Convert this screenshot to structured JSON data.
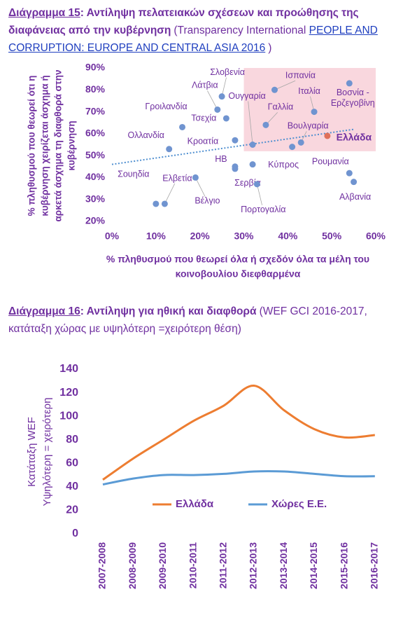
{
  "chart_data": [
    {
      "type": "scatter",
      "caption": {
        "label": "Διάγραμμα 15",
        "title": ": Αντίληψη πελατειακών σχέσεων και προώθησης της διαφάνειας από την κυβέρνηση",
        "source": "(Transparency International",
        "source_link": "PEOPLE AND CORRUPTION: EUROPE AND CENTRAL ASIA 2016",
        "source_end": ")"
      },
      "x_label": [
        "% πληθυσμού που θεωρεί όλα ή σχεδόν όλα τα μέλη του",
        "κοινοβουλίου διεφθαρμένα"
      ],
      "y_label": [
        "% πληθυσμού που θεωρεί ότι η",
        "κυβέρνηση χειρίζεται άσχημα ή",
        "αρκετά άσχημα τη διαφθορά στην",
        "κυβέρνηση"
      ],
      "labels": [
        "Σλοβενία",
        "Λάτβια",
        "Τσεχία",
        "Γροιλανδία",
        "Ολλανδία",
        "Κροατία",
        "ΗΒ",
        "Σουηδία",
        "Ελβετία",
        "Βέλγιο",
        "Σερβία",
        "Πορτογαλία",
        "Κύπρος",
        "Ουγγαρία",
        "Ισπανία",
        "Γαλλία",
        "Ιταλία",
        "Βουλγαρία",
        null,
        "Ελλάδα",
        "Βοσνία -\nΕρζεγοβίνη",
        "Ρουμανία",
        "Αλβανία"
      ],
      "x": [
        25,
        24,
        26,
        16,
        13,
        28,
        28,
        10,
        12,
        19,
        28,
        33,
        32,
        32,
        37,
        35,
        46,
        43,
        41,
        49,
        54,
        54,
        55
      ],
      "values": [
        77,
        71,
        67,
        63,
        53,
        57,
        45,
        28,
        28,
        40,
        44,
        37,
        46,
        55,
        80,
        64,
        70,
        56,
        54,
        59,
        83,
        42,
        38
      ],
      "point_colors": [
        "#7094d0",
        "#7094d0",
        "#7094d0",
        "#7094d0",
        "#7094d0",
        "#7094d0",
        "#7094d0",
        "#7094d0",
        "#7094d0",
        "#7094d0",
        "#7094d0",
        "#7094d0",
        "#7094d0",
        "#7094d0",
        "#7094d0",
        "#7094d0",
        "#7094d0",
        "#7094d0",
        "#7094d0",
        "#e0705a",
        "#7094d0",
        "#7094d0",
        "#7094d0"
      ],
      "label_colors": [
        "#7030a0",
        "#7030a0",
        "#7030a0",
        "#7030a0",
        "#7030a0",
        "#7030a0",
        "#7030a0",
        "#7030a0",
        "#7030a0",
        "#7030a0",
        "#7030a0",
        "#7030a0",
        "#7030a0",
        "#7030a0",
        "#7030a0",
        "#7030a0",
        "#7030a0",
        "#7030a0",
        "#7030a0",
        "#ff0000",
        "#7030a0",
        "#7030a0",
        "#7030a0"
      ],
      "xlim": [
        0,
        60
      ],
      "xticks": [
        {
          "value": 0,
          "label": "0%"
        },
        {
          "value": 10,
          "label": "10%"
        },
        {
          "value": 20,
          "label": "20%"
        },
        {
          "value": 30,
          "label": "30%"
        },
        {
          "value": 40,
          "label": "40%"
        },
        {
          "value": 50,
          "label": "50%"
        },
        {
          "value": 60,
          "label": "60%"
        }
      ],
      "ylim": [
        20,
        90
      ],
      "yticks": [
        {
          "value": 20,
          "label": "20%"
        },
        {
          "value": 30,
          "label": "30%"
        },
        {
          "value": 40,
          "label": "40%"
        },
        {
          "value": 50,
          "label": "50%"
        },
        {
          "value": 60,
          "label": "60%"
        },
        {
          "value": 70,
          "label": "70%"
        },
        {
          "value": 80,
          "label": "80%"
        },
        {
          "value": 90,
          "label": "90%"
        }
      ],
      "trendline": {
        "x": [
          0,
          55
        ],
        "y": [
          46,
          62
        ],
        "color": "#4f8fd0"
      },
      "highlight_region": {
        "x": [
          30,
          60
        ],
        "y": [
          52,
          90
        ],
        "color": "#f9d7de"
      }
    },
    {
      "type": "line",
      "caption": {
        "label": "Διάγραμμα 16",
        "title": ": Αντίληψη για ηθική και διαφθορά",
        "source": "(WEF GCI 2016-2017, κατάταξη χώρας με υψηλότερη =χειρότερη θέση)"
      },
      "y_label": [
        "Κατάταξη WEF",
        "Υψηλότερη = χειρότερη"
      ],
      "categories": [
        "2007-2008",
        "2008-2009",
        "2009-2010",
        "2010-2011",
        "2011-2012",
        "2012-2013",
        "2013-2014",
        "2014-2015",
        "2015-2016",
        "2016-2017"
      ],
      "series": [
        {
          "name": "Ελλάδα",
          "color": "#ed7d31",
          "values": [
            46,
            64,
            80,
            96,
            109,
            126,
            105,
            89,
            82,
            84
          ]
        },
        {
          "name": "Χώρες Ε.Ε.",
          "color": "#5b9bd5",
          "values": [
            42,
            47,
            50,
            50,
            51,
            53,
            53,
            51,
            49,
            49
          ]
        }
      ],
      "ylim": [
        0,
        140
      ],
      "yticks": [
        0,
        20,
        40,
        60,
        80,
        100,
        120,
        140
      ],
      "legend": "bottom"
    }
  ]
}
